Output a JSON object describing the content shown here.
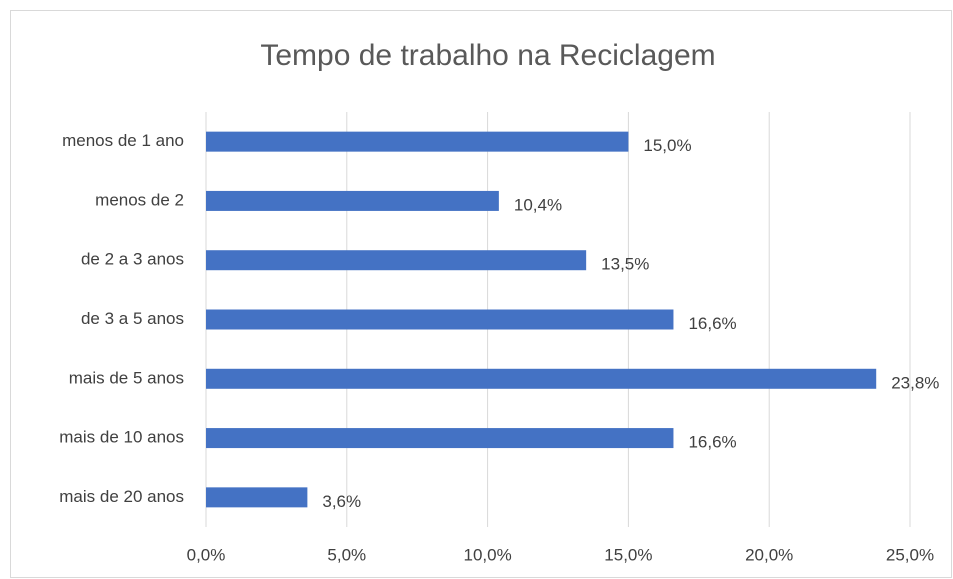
{
  "chart_data": {
    "type": "bar",
    "orientation": "horizontal",
    "title": "Tempo de trabalho na Reciclagem",
    "categories": [
      "menos de 1 ano",
      "menos de 2",
      "de 2 a 3 anos",
      "de 3 a 5 anos",
      "mais de 5 anos",
      "mais de 10 anos",
      "mais de 20 anos"
    ],
    "values": [
      15.0,
      10.4,
      13.5,
      16.6,
      23.8,
      16.6,
      3.6
    ],
    "value_labels": [
      "15,0%",
      "10,4%",
      "13,5%",
      "16,6%",
      "23,8%",
      "16,6%",
      "3,6%"
    ],
    "color": "#4472c4",
    "xlim": [
      0,
      25
    ],
    "xticks": [
      {
        "value": 0,
        "label": "0,0%"
      },
      {
        "value": 5,
        "label": "5,0%"
      },
      {
        "value": 10,
        "label": "10,0%"
      },
      {
        "value": 15,
        "label": "15,0%"
      },
      {
        "value": 20,
        "label": "20,0%"
      },
      {
        "value": 25,
        "label": "25,0%"
      }
    ],
    "grid": true
  }
}
